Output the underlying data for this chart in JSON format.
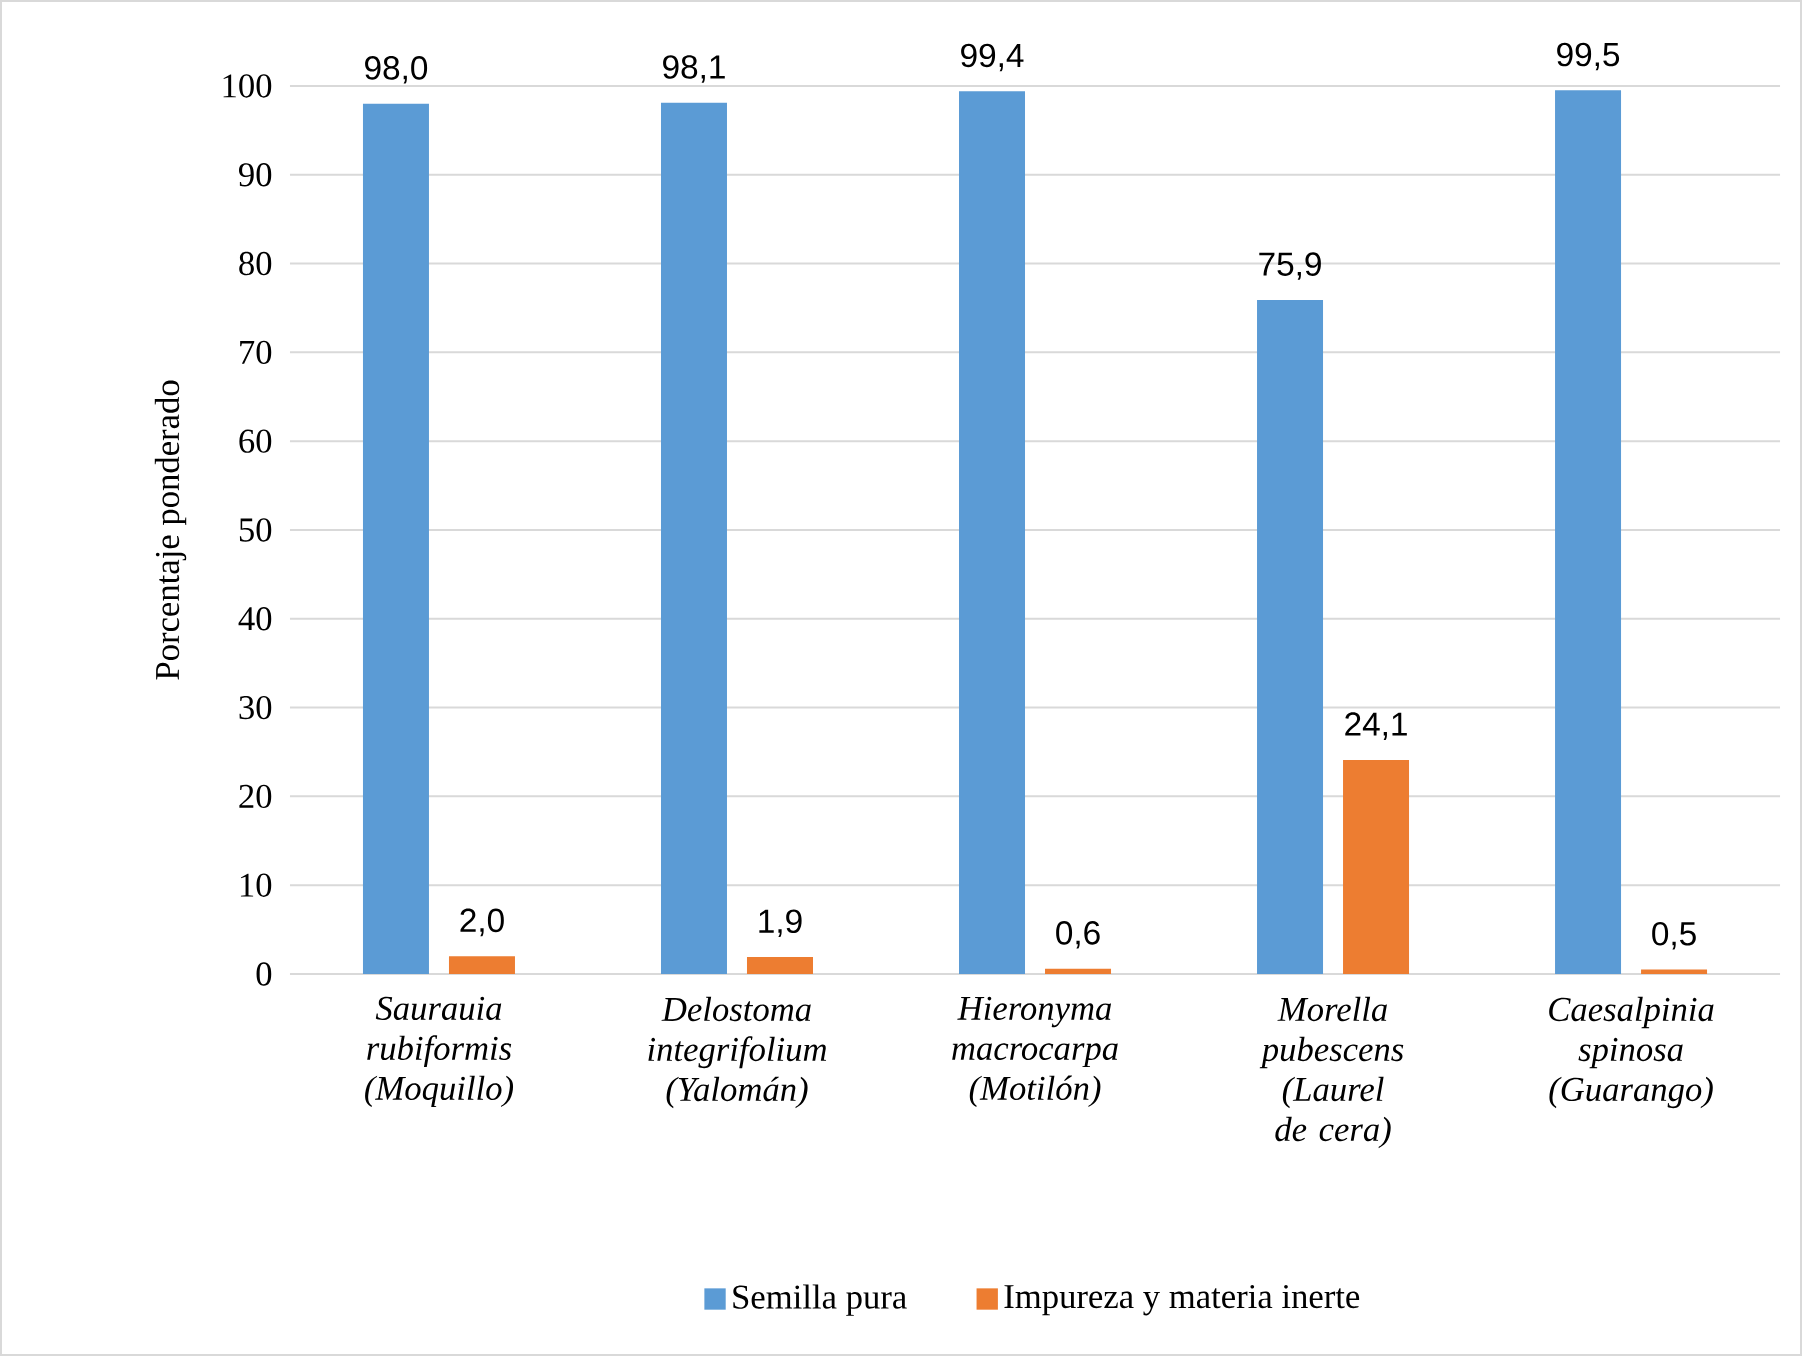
{
  "chart_data": {
    "type": "bar",
    "ylabel": "Porcentaje ponderado",
    "categories": [
      "Saurauia rubiformis (Moquillo)",
      "Delostoma integrifolium (Yalomán)",
      "Hieronyma macrocarpa (Motilón)",
      "Morella pubescens (Laurel de cera)",
      "Caesalpinia spinosa (Guarango)"
    ],
    "series": [
      {
        "name": "Semilla pura",
        "color": "#5b9bd5",
        "values": [
          98.0,
          98.1,
          99.4,
          75.9,
          99.5
        ],
        "value_labels": [
          "98,0",
          "98,1",
          "99,4",
          "75,9",
          "99,5"
        ]
      },
      {
        "name": "Impureza y materia inerte",
        "color": "#ed7d31",
        "values": [
          2.0,
          1.9,
          0.6,
          24.1,
          0.5
        ],
        "value_labels": [
          "2,0",
          "1,9",
          "0,6",
          "24,1",
          "0,5"
        ]
      }
    ],
    "ylim": [
      0,
      100
    ],
    "yticks": [
      0,
      10,
      20,
      30,
      40,
      50,
      60,
      70,
      80,
      90,
      100
    ],
    "grid": "y",
    "legend": "bottom"
  }
}
